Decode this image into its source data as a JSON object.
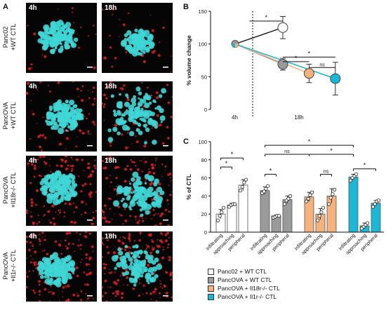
{
  "panels": {
    "a": "A",
    "b": "B",
    "c": "C"
  },
  "micrographs": {
    "rows": [
      {
        "label_line1": "Panc02",
        "label_line2": "+WT CTL",
        "left_time": "4h",
        "right_time": "18h",
        "red_level": 0.05
      },
      {
        "label_line1": "PancOVA",
        "label_line2": "+WT CTL",
        "left_time": "4h",
        "right_time": "18h",
        "red_level": 0.25
      },
      {
        "label_line1": "PancOVA",
        "label_line2": "+Il18r-/- CTL",
        "left_time": "4h",
        "right_time": "18h",
        "red_level": 0.8
      },
      {
        "label_line1": "PancOVA",
        "label_line2": "+Il1r-/- CTL",
        "left_time": "4h",
        "right_time": "18h",
        "red_level": 0.9
      }
    ],
    "colors": {
      "tumor": "#3fd6d6",
      "ctl": "#e02020",
      "background": "#050505"
    }
  },
  "chart_data": [
    {
      "type": "line",
      "panel": "B",
      "ylabel": "% volume change",
      "ylim": [
        0,
        150
      ],
      "yticks": [
        0,
        50,
        100,
        150
      ],
      "x_labels": [
        "4h",
        "18h"
      ],
      "series": [
        {
          "name": "Panc02 + WT CTL",
          "color": "#ffffff",
          "points": [
            [
              0,
              100
            ],
            [
              1,
              125
            ]
          ],
          "err": [
            0,
            17
          ]
        },
        {
          "name": "PancOVA + WT CTL",
          "color": "#9a9a9a",
          "points": [
            [
              0,
              100
            ],
            [
              1,
              69
            ]
          ],
          "err": [
            0,
            9
          ]
        },
        {
          "name": "PancOVA + Il18r-/- CTL",
          "color": "#f6b27a",
          "points": [
            [
              0,
              100
            ],
            [
              1.55,
              55
            ]
          ],
          "err": [
            0,
            14
          ]
        },
        {
          "name": "PancOVA + Il1r-/- CTL",
          "color": "#1ab8d4",
          "points": [
            [
              0,
              100
            ],
            [
              2.1,
              47
            ]
          ],
          "err": [
            0,
            25
          ]
        }
      ],
      "significance": [
        "*",
        "*",
        "*",
        "ns"
      ]
    },
    {
      "type": "bar",
      "panel": "C",
      "ylabel": "% of CTL",
      "ylim": [
        0,
        100
      ],
      "yticks": [
        0,
        20,
        40,
        60,
        80,
        100
      ],
      "categories": [
        "infiltrating",
        "approaching",
        "peripheral"
      ],
      "groups": [
        {
          "name": "Panc02 + WT CTL",
          "color": "#ffffff",
          "values": [
            20,
            30,
            52
          ],
          "err": [
            5,
            2,
            6
          ],
          "points": [
            [
              13,
              18,
              22,
              27
            ],
            [
              28,
              30,
              31,
              31
            ],
            [
              46,
              50,
              55,
              58
            ]
          ]
        },
        {
          "name": "PancOVA + WT CTL",
          "color": "#9a9a9a",
          "values": [
            46,
            18,
            36
          ],
          "err": [
            4,
            1,
            4
          ],
          "points": [
            [
              43,
              45,
              48,
              51
            ],
            [
              16,
              17,
              18,
              18
            ],
            [
              31,
              35,
              37,
              40
            ]
          ]
        },
        {
          "name": "PancOVA + Il18r-/- CTL",
          "color": "#f6b27a",
          "values": [
            39,
            20,
            40
          ],
          "err": [
            5,
            6,
            8
          ],
          "points": [
            [
              34,
              37,
              41,
              44
            ],
            [
              13,
              18,
              22,
              27
            ],
            [
              31,
              38,
              42,
              47
            ]
          ]
        },
        {
          "name": "PancOVA + Il1r-/- CTL",
          "color": "#1ab8d4",
          "values": [
            61,
            7,
            32
          ],
          "err": [
            3,
            3,
            3
          ],
          "points": [
            [
              57,
              60,
              62,
              64
            ],
            [
              4,
              6,
              8,
              10
            ],
            [
              28,
              31,
              34,
              35
            ]
          ]
        }
      ],
      "significance": [
        "*",
        "*",
        "*",
        "*",
        "ns",
        "*",
        "ns",
        "*",
        "*"
      ]
    }
  ],
  "legend": [
    {
      "label": "Panc02 + WT CTL",
      "color": "#ffffff"
    },
    {
      "label": "PancOVA + WT CTL",
      "color": "#9a9a9a"
    },
    {
      "label": "PancOVA + Il18r-/- CTL",
      "color": "#f6b27a"
    },
    {
      "label": "PancOVA + Il1r-/- CTL",
      "color": "#1ab8d4"
    }
  ]
}
